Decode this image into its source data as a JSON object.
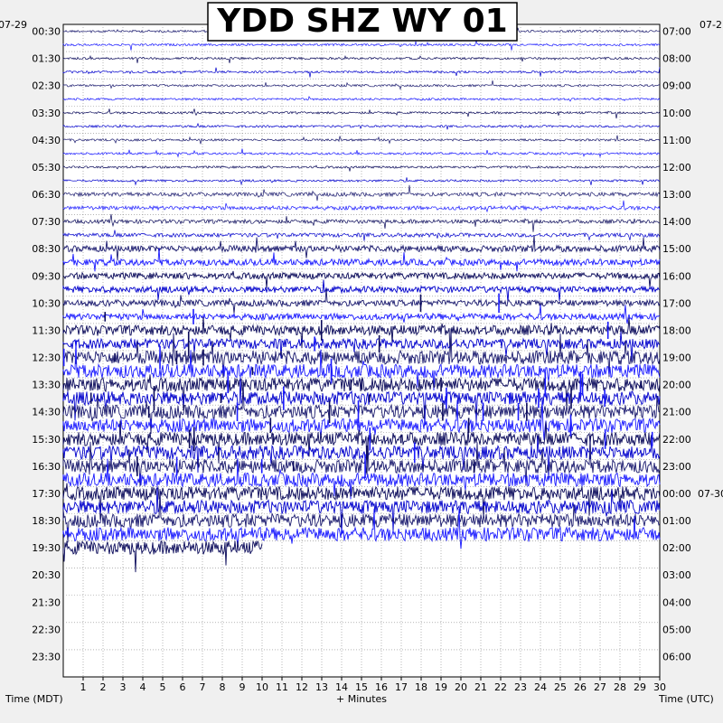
{
  "chart_data": {
    "type": "helicorder",
    "title": "YDD SHZ WY 01",
    "left_date": "07-29",
    "right_date_top": "07-2",
    "right_date_change": "07-30",
    "xlabel": "+ Minutes",
    "left_axis_label": "Time (MDT)",
    "right_axis_label": "Time (UTC)",
    "x_ticks": [
      "1",
      "2",
      "3",
      "4",
      "5",
      "6",
      "7",
      "8",
      "9",
      "10",
      "11",
      "12",
      "13",
      "14",
      "15",
      "16",
      "17",
      "18",
      "19",
      "20",
      "21",
      "22",
      "23",
      "24",
      "25",
      "26",
      "27",
      "28",
      "29",
      "30"
    ],
    "xlim": [
      0,
      30
    ],
    "left_times": [
      "00:30",
      "01:30",
      "02:30",
      "03:30",
      "04:30",
      "05:30",
      "06:30",
      "07:30",
      "08:30",
      "09:30",
      "10:30",
      "11:30",
      "12:30",
      "13:30",
      "14:30",
      "15:30",
      "16:30",
      "17:30",
      "18:30",
      "19:30",
      "20:30",
      "21:30",
      "22:30",
      "23:30"
    ],
    "right_times": [
      "07:00",
      "08:00",
      "09:00",
      "10:00",
      "11:00",
      "12:00",
      "13:00",
      "14:00",
      "15:00",
      "16:00",
      "17:00",
      "18:00",
      "19:00",
      "20:00",
      "21:00",
      "22:00",
      "23:00",
      "00:00",
      "01:00",
      "02:00",
      "03:00",
      "04:00",
      "05:00",
      "06:00"
    ],
    "trace_lines_per_hour": 2,
    "total_trace_lines": 48,
    "traces_visible_until_line": 39,
    "last_line_end_minute": 10,
    "trace_colors": [
      "#1a1a6e",
      "#1a1aff",
      "#0a0a5a",
      "#0000cc"
    ],
    "noise_level_by_line": [
      1,
      1,
      1,
      1,
      1,
      1,
      1,
      1,
      1,
      1,
      1,
      1,
      2,
      2,
      2,
      2,
      3,
      3,
      3,
      3,
      3,
      3,
      4,
      4,
      5,
      5,
      5,
      5,
      5,
      5,
      5,
      5,
      5,
      5,
      5,
      5,
      5,
      5,
      5,
      5,
      0,
      0,
      0,
      0,
      0,
      0,
      0,
      0
    ]
  }
}
